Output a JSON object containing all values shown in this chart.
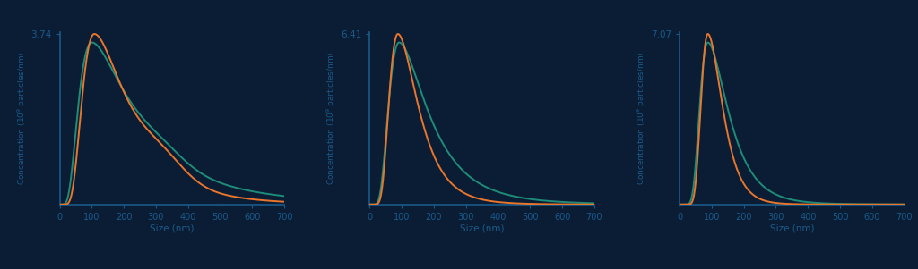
{
  "background_color": "#0b1d35",
  "plot_bg_color": "#0b1d35",
  "orange_color": "#e8762c",
  "teal_color": "#1e8c78",
  "axis_color": "#1a5a8a",
  "text_color": "#1a5a8a",
  "charts": [
    {
      "ymax_label": "3.74",
      "ymax": 3.74,
      "peak_orange": 108,
      "sigma_orange_l": 0.45,
      "sigma_orange_r": 0.65,
      "peak_teal": 100,
      "sigma_teal_l": 0.55,
      "sigma_teal_r": 0.8,
      "secondary_bump_orange": 0.1,
      "secondary_bump_teal": 0.06,
      "secondary_peak": 320,
      "secondary_sigma": 70
    },
    {
      "ymax_label": "6.41",
      "ymax": 6.41,
      "peak_orange": 88,
      "sigma_orange_l": 0.38,
      "sigma_orange_r": 0.52,
      "peak_teal": 92,
      "sigma_teal_l": 0.45,
      "sigma_teal_r": 0.65,
      "secondary_bump_orange": 0.0,
      "secondary_bump_teal": 0.0,
      "secondary_peak": 300,
      "secondary_sigma": 60
    },
    {
      "ymax_label": "7.07",
      "ymax": 7.07,
      "peak_orange": 88,
      "sigma_orange_l": 0.28,
      "sigma_orange_r": 0.4,
      "peak_teal": 88,
      "sigma_teal_l": 0.34,
      "sigma_teal_r": 0.52,
      "secondary_bump_orange": 0.0,
      "secondary_bump_teal": 0.0,
      "secondary_peak": 300,
      "secondary_sigma": 60
    }
  ],
  "xlabel": "Size (nm)",
  "ylabel": "Concentration (10$^9$ particles/nm)",
  "xmax": 700,
  "xticks": [
    0,
    100,
    200,
    300,
    400,
    500,
    600,
    700
  ]
}
